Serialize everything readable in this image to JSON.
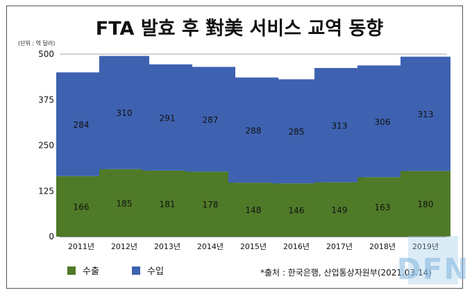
{
  "chart_data": {
    "type": "bar",
    "stacked": true,
    "title": "FTA 발효 후 對美 서비스 교역 동향",
    "unit_label": "(단위 : 억 달러)",
    "categories": [
      "2011년",
      "2012년",
      "2013년",
      "2014년",
      "2015년",
      "2016년",
      "2017년",
      "2018년",
      "2019년"
    ],
    "series": [
      {
        "name": "수출",
        "color": "#4f7a28",
        "values": [
          166,
          185,
          181,
          178,
          148,
          146,
          149,
          163,
          180
        ]
      },
      {
        "name": "수입",
        "color": "#3e62b0",
        "values": [
          284,
          310,
          291,
          287,
          288,
          285,
          313,
          306,
          313
        ]
      }
    ],
    "ylim": [
      0,
      500
    ],
    "yticks": [
      0,
      125,
      250,
      375,
      500
    ],
    "grid": true,
    "legend": "bottom-left"
  },
  "source": "*출처 : 한국은행, 산업통상자원부(2021.03.14)",
  "watermark": "DFN"
}
